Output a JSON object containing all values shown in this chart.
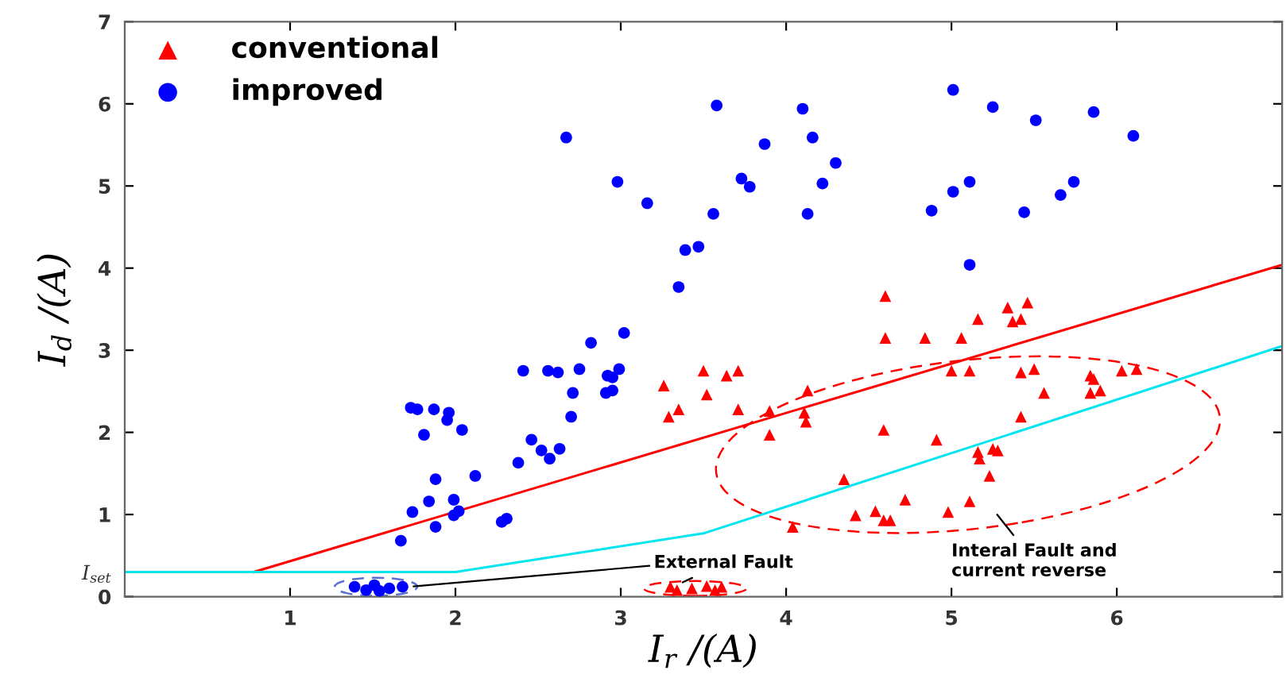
{
  "chart_data": {
    "type": "scatter",
    "xlabel": "I$_{r}$ /(A)",
    "ylabel": "I$_{d}$ /(A)",
    "xlim": [
      0,
      7
    ],
    "ylim": [
      0,
      7
    ],
    "xticks": [
      1,
      2,
      3,
      4,
      5,
      6
    ],
    "yticks": [
      0,
      {
        "value": 0.3,
        "label": "I$_{set}$"
      },
      1,
      2,
      3,
      4,
      5,
      6,
      7
    ],
    "grid": false,
    "legend": "top left",
    "series": [
      {
        "name": "conventional",
        "color": "#ff0000",
        "marker": "triangle",
        "x": [
          4.6,
          5.34,
          5.46,
          5.16,
          5.37,
          5.42,
          4.6,
          4.84,
          5.06,
          3.26,
          3.29,
          3.35,
          3.5,
          3.52,
          3.64,
          3.71,
          3.71,
          3.9,
          3.9,
          4.13,
          4.11,
          4.12,
          4.04,
          4.35,
          4.42,
          4.54,
          4.59,
          4.63,
          4.59,
          4.72,
          4.91,
          4.98,
          5.0,
          5.11,
          5.11,
          5.16,
          5.17,
          5.25,
          5.28,
          5.23,
          5.42,
          5.42,
          5.5,
          5.56,
          5.84,
          5.86,
          5.84,
          5.9,
          6.03,
          6.12,
          3.3,
          3.34,
          3.43,
          3.52,
          3.57,
          3.61
        ],
        "values": [
          3.66,
          3.52,
          3.58,
          3.38,
          3.35,
          3.38,
          3.15,
          3.15,
          3.15,
          2.57,
          2.19,
          2.28,
          2.75,
          2.46,
          2.69,
          2.75,
          2.28,
          2.26,
          1.97,
          2.51,
          2.24,
          2.13,
          0.85,
          1.43,
          0.99,
          1.04,
          0.93,
          0.93,
          2.03,
          1.18,
          1.91,
          1.03,
          2.75,
          2.75,
          1.16,
          1.76,
          1.68,
          1.8,
          1.78,
          1.47,
          2.19,
          2.73,
          2.77,
          2.48,
          2.69,
          2.65,
          2.48,
          2.51,
          2.75,
          2.77,
          0.12,
          0.08,
          0.1,
          0.13,
          0.08,
          0.12
        ]
      },
      {
        "name": "improved",
        "color": "#0000ff",
        "marker": "circle",
        "x": [
          1.67,
          1.74,
          1.88,
          1.84,
          1.88,
          1.99,
          1.99,
          2.02,
          2.12,
          1.73,
          1.77,
          1.87,
          1.96,
          1.95,
          1.81,
          2.04,
          2.28,
          2.31,
          2.38,
          2.46,
          2.52,
          2.57,
          2.63,
          2.41,
          2.56,
          2.62,
          2.7,
          2.71,
          2.75,
          2.82,
          2.91,
          2.95,
          2.92,
          2.95,
          2.99,
          3.02,
          2.67,
          2.98,
          3.16,
          3.58,
          4.1,
          5.01,
          5.25,
          5.51,
          5.86,
          6.1,
          3.87,
          4.16,
          4.3,
          3.73,
          3.78,
          4.22,
          3.56,
          4.13,
          4.88,
          5.01,
          5.11,
          5.44,
          5.66,
          5.74,
          5.11,
          3.39,
          3.47,
          3.35,
          1.39,
          1.46,
          1.51,
          1.54,
          1.6,
          1.68
        ],
        "values": [
          0.68,
          1.03,
          0.85,
          1.16,
          1.43,
          0.99,
          1.18,
          1.04,
          1.47,
          2.3,
          2.28,
          2.28,
          2.24,
          2.15,
          1.97,
          2.03,
          0.91,
          0.95,
          1.63,
          1.91,
          1.78,
          1.68,
          1.8,
          2.75,
          2.75,
          2.73,
          2.19,
          2.48,
          2.77,
          3.09,
          2.48,
          2.51,
          2.69,
          2.67,
          2.77,
          3.21,
          5.59,
          5.05,
          4.79,
          5.98,
          5.94,
          6.17,
          5.96,
          5.8,
          5.9,
          5.61,
          5.51,
          5.59,
          5.28,
          5.09,
          4.99,
          5.03,
          4.66,
          4.66,
          4.7,
          4.93,
          5.05,
          4.68,
          4.89,
          5.05,
          4.04,
          4.22,
          4.26,
          3.77,
          0.12,
          0.08,
          0.14,
          0.07,
          0.1,
          0.12
        ]
      },
      {
        "type": "line",
        "color": "#ff0000",
        "x": [
          0.78,
          7
        ],
        "values": [
          0.3,
          4.04
        ]
      },
      {
        "type": "line",
        "color": "#00e5ee",
        "x": [
          0,
          2,
          3.5,
          7
        ],
        "values": [
          0.3,
          0.3,
          0.77,
          3.05
        ]
      }
    ],
    "annotations": [
      {
        "text": "External Fault",
        "x": 3.35,
        "y": 0.15
      },
      "Interal Fault and\ncurrent reverse"
    ]
  }
}
